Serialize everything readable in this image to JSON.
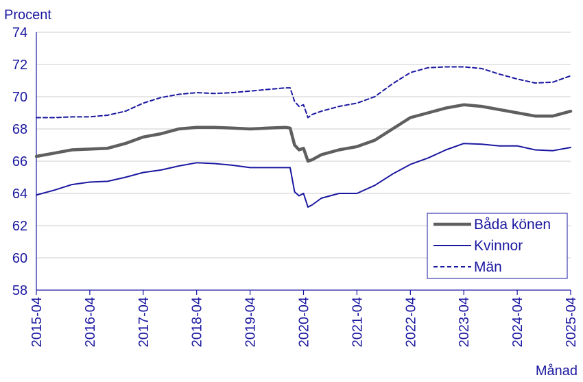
{
  "chart_data": {
    "type": "line",
    "ylabel": "Procent",
    "xlabel": "Månad",
    "ylim": [
      58,
      74
    ],
    "yticks": [
      58,
      60,
      62,
      64,
      66,
      68,
      70,
      72,
      74
    ],
    "xticks": [
      "2015-04",
      "2016-04",
      "2017-04",
      "2018-04",
      "2019-04",
      "2020-04",
      "2021-04",
      "2022-04",
      "2023-04",
      "2024-04",
      "2025-04"
    ],
    "grid": "horizontal",
    "legend_position": "bottom-right",
    "colors": {
      "axis": "#1a17a0",
      "grid": "#cccccc",
      "bada": "#5f5f5f",
      "kvinnor": "#1a17a0",
      "man": "#1a17a0"
    },
    "series": [
      {
        "name": "Båda könen",
        "style": "thick-solid",
        "x": [
          "2015-04",
          "2015-08",
          "2015-12",
          "2016-04",
          "2016-08",
          "2016-12",
          "2017-04",
          "2017-08",
          "2017-12",
          "2018-04",
          "2018-08",
          "2018-12",
          "2019-04",
          "2019-08",
          "2019-12",
          "2020-01",
          "2020-02",
          "2020-03",
          "2020-04",
          "2020-05",
          "2020-06",
          "2020-08",
          "2020-12",
          "2021-04",
          "2021-08",
          "2021-12",
          "2022-04",
          "2022-08",
          "2022-12",
          "2023-04",
          "2023-08",
          "2023-12",
          "2024-04",
          "2024-08",
          "2024-12",
          "2025-04"
        ],
        "values": [
          66.3,
          66.5,
          66.7,
          66.75,
          66.8,
          67.1,
          67.5,
          67.7,
          68.0,
          68.1,
          68.1,
          68.05,
          68.0,
          68.05,
          68.1,
          68.05,
          67.0,
          66.7,
          66.8,
          66.0,
          66.1,
          66.4,
          66.7,
          66.9,
          67.3,
          68.0,
          68.7,
          69.0,
          69.3,
          69.5,
          69.4,
          69.2,
          69.0,
          68.8,
          68.8,
          69.1
        ]
      },
      {
        "name": "Kvinnor",
        "style": "solid",
        "x": [
          "2015-04",
          "2015-08",
          "2015-12",
          "2016-04",
          "2016-08",
          "2016-12",
          "2017-04",
          "2017-08",
          "2017-12",
          "2018-04",
          "2018-08",
          "2018-12",
          "2019-04",
          "2019-08",
          "2019-12",
          "2020-01",
          "2020-02",
          "2020-03",
          "2020-04",
          "2020-05",
          "2020-06",
          "2020-08",
          "2020-12",
          "2021-04",
          "2021-08",
          "2021-12",
          "2022-04",
          "2022-08",
          "2022-12",
          "2023-04",
          "2023-08",
          "2023-12",
          "2024-04",
          "2024-08",
          "2024-12",
          "2025-04"
        ],
        "values": [
          63.9,
          64.2,
          64.55,
          64.7,
          64.75,
          65.0,
          65.3,
          65.45,
          65.7,
          65.9,
          65.85,
          65.75,
          65.6,
          65.6,
          65.6,
          65.6,
          64.1,
          63.85,
          64.0,
          63.15,
          63.3,
          63.7,
          64.0,
          64.0,
          64.5,
          65.2,
          65.8,
          66.2,
          66.7,
          67.1,
          67.05,
          66.95,
          66.95,
          66.7,
          66.65,
          66.85
        ]
      },
      {
        "name": "Män",
        "style": "dashed",
        "x": [
          "2015-04",
          "2015-08",
          "2015-12",
          "2016-04",
          "2016-08",
          "2016-12",
          "2017-04",
          "2017-08",
          "2017-12",
          "2018-04",
          "2018-08",
          "2018-12",
          "2019-04",
          "2019-08",
          "2019-12",
          "2020-01",
          "2020-02",
          "2020-03",
          "2020-04",
          "2020-05",
          "2020-06",
          "2020-08",
          "2020-12",
          "2021-04",
          "2021-08",
          "2021-12",
          "2022-04",
          "2022-08",
          "2022-12",
          "2023-04",
          "2023-08",
          "2023-12",
          "2024-04",
          "2024-08",
          "2024-12",
          "2025-04"
        ],
        "values": [
          68.7,
          68.7,
          68.75,
          68.75,
          68.85,
          69.1,
          69.6,
          69.95,
          70.15,
          70.25,
          70.2,
          70.25,
          70.35,
          70.45,
          70.55,
          70.55,
          69.7,
          69.4,
          69.5,
          68.7,
          68.9,
          69.1,
          69.4,
          69.6,
          70.0,
          70.8,
          71.5,
          71.8,
          71.85,
          71.85,
          71.75,
          71.4,
          71.1,
          70.85,
          70.9,
          71.3
        ]
      }
    ]
  }
}
